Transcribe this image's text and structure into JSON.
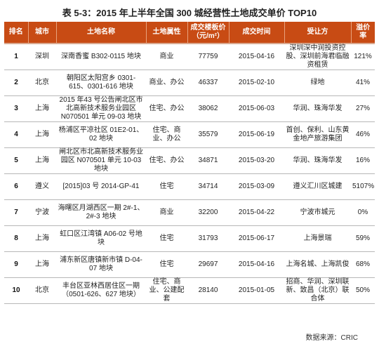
{
  "title": "表 5-3：2015 年上半年全国 300 城经营性土地成交单价 TOP10",
  "columns": [
    "排名",
    "城市",
    "土地名称",
    "土地属性",
    "成交楼板价（元/m²）",
    "成交时间",
    "受让方",
    "溢价率"
  ],
  "rows": [
    {
      "rank": "1",
      "city": "深圳",
      "name": "深南香蜜 B302-0115 地块",
      "use": "商业",
      "price": "77759",
      "date": "2015-04-16",
      "buyer": "深圳深中润投资控股、深圳前海君临融资租赁",
      "premium": "121%"
    },
    {
      "rank": "2",
      "city": "北京",
      "name": "朝阳区太阳宫乡 0301-615、0301-616 地块",
      "use": "商业、办公",
      "price": "46337",
      "date": "2015-02-10",
      "buyer": "绿地",
      "premium": "41%"
    },
    {
      "rank": "3",
      "city": "上海",
      "name": "2015 年43 号公告闸北区市北高新技术服务业园区 N070501 单元 09-03 地块",
      "use": "住宅、办公",
      "price": "38062",
      "date": "2015-06-03",
      "buyer": "华润、珠海华发",
      "premium": "27%"
    },
    {
      "rank": "4",
      "city": "上海",
      "name": "杨浦区平凉社区 01E2-01、02 地块",
      "use": "住宅、商业、办公",
      "price": "35579",
      "date": "2015-06-19",
      "buyer": "首创、保利、山东黄金地产旅游集团",
      "premium": "46%"
    },
    {
      "rank": "5",
      "city": "上海",
      "name": "闸北区市北高新技术服务业园区 N070501 单元 10-03 地块",
      "use": "住宅、办公",
      "price": "34871",
      "date": "2015-03-20",
      "buyer": "华润、珠海华发",
      "premium": "16%"
    },
    {
      "rank": "6",
      "city": "遵义",
      "name": "[2015]03 号 2014-GP-41",
      "use": "住宅",
      "price": "34714",
      "date": "2015-03-09",
      "buyer": "遵义汇川区城建",
      "premium": "5107%"
    },
    {
      "rank": "7",
      "city": "宁波",
      "name": "海曙区月湖西区一期 2#-1、2#-3 地块",
      "use": "商业",
      "price": "32200",
      "date": "2015-04-22",
      "buyer": "宁波市城元",
      "premium": "0%"
    },
    {
      "rank": "8",
      "city": "上海",
      "name": "虹口区江湾镇 A06-02 号地块",
      "use": "住宅",
      "price": "31793",
      "date": "2015-06-17",
      "buyer": "上海景瑞",
      "premium": "59%"
    },
    {
      "rank": "9",
      "city": "上海",
      "name": "浦东新区唐镇新市镇 D-04-07 地块",
      "use": "住宅",
      "price": "29697",
      "date": "2015-04-16",
      "buyer": "上海名城、上海凯俊",
      "premium": "68%"
    },
    {
      "rank": "10",
      "city": "北京",
      "name": "丰台区亚林西居住区一期（0501-626、627 地块）",
      "use": "住宅、商业、公建配套",
      "price": "28140",
      "date": "2015-01-05",
      "buyer": "招商、华润、深圳联新、致昌（北京）联合体",
      "premium": "50%"
    }
  ],
  "source": "数据来源：CRIC"
}
